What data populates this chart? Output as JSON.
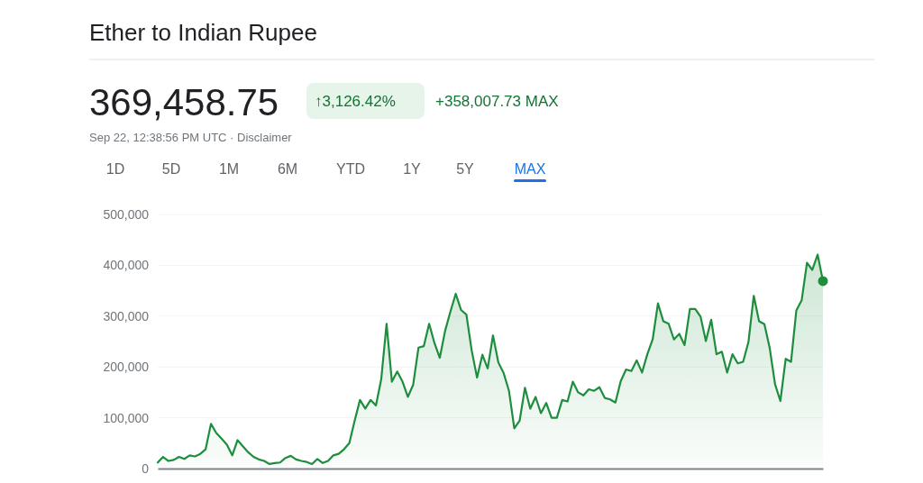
{
  "chart_data": {
    "type": "area",
    "title": "Ether to Indian Rupee",
    "annotations": [
      "369,458.75",
      "↑3,126.42%",
      "+358,007.73 MAX",
      "Sep 22, 12:38:56 PM UTC · Disclaimer",
      "1D",
      "5D",
      "1M",
      "6M",
      "YTD",
      "1Y",
      "5Y",
      "MAX"
    ],
    "categories": [
      null,
      null,
      null,
      null,
      null,
      null,
      null,
      null,
      null,
      null,
      null,
      null,
      null,
      null,
      null,
      null,
      null,
      null,
      null,
      null,
      null,
      null,
      null,
      null,
      null,
      null,
      null,
      null,
      null,
      null,
      null,
      null,
      null,
      null,
      null,
      null,
      null,
      null,
      null,
      null,
      null,
      null,
      null,
      null,
      null,
      null,
      null,
      null,
      null,
      null,
      null,
      null,
      null,
      null,
      null,
      null,
      null,
      null,
      null,
      null,
      null,
      null,
      null,
      null,
      null,
      null,
      null,
      null,
      null,
      null,
      null,
      null,
      null,
      null,
      null,
      null,
      null,
      null,
      null,
      null,
      null,
      null,
      null,
      null,
      null,
      null,
      null,
      null,
      null,
      null,
      null,
      null,
      null,
      null,
      null,
      null,
      null,
      null,
      null,
      null,
      null,
      null,
      null,
      null,
      null,
      null,
      null,
      null,
      null,
      null,
      null,
      null,
      null,
      null,
      null,
      null,
      null,
      null,
      null,
      null,
      null,
      null,
      null,
      null,
      null,
      null
    ],
    "series": [
      {
        "color": "#1e8e3e",
        "values": [
          12000,
          23000,
          15000,
          17000,
          23000,
          19000,
          26000,
          24000,
          29000,
          38000,
          88000,
          70000,
          59000,
          47000,
          26000,
          56000,
          44000,
          32000,
          23000,
          18000,
          15000,
          9000,
          11000,
          12000,
          21000,
          25000,
          18000,
          15000,
          13000,
          9000,
          19000,
          11000,
          15000,
          26000,
          29000,
          38000,
          50000,
          94000,
          135000,
          118000,
          135000,
          124000,
          176000,
          285000,
          171000,
          191000,
          171000,
          141000,
          165000,
          238000,
          241000,
          285000,
          247000,
          218000,
          271000,
          309000,
          344000,
          312000,
          303000,
          232000,
          179000,
          224000,
          197000,
          262000,
          209000,
          188000,
          153000,
          79000,
          94000,
          159000,
          118000,
          141000,
          109000,
          129000,
          100000,
          100000,
          135000,
          132000,
          171000,
          150000,
          144000,
          156000,
          153000,
          160000,
          139000,
          136000,
          130000,
          172000,
          195000,
          192000,
          213000,
          189000,
          225000,
          254000,
          325000,
          290000,
          285000,
          254000,
          265000,
          243000,
          314000,
          314000,
          299000,
          251000,
          293000,
          225000,
          230000,
          189000,
          225000,
          207000,
          210000,
          249000,
          340000,
          290000,
          284000,
          237000,
          166000,
          133000,
          216000,
          210000,
          311000,
          331000,
          405000,
          391000,
          421000,
          369000
        ]
      }
    ],
    "ylim": [
      0,
      500000
    ],
    "yticks": [
      {
        "value": 0,
        "label": "0"
      },
      {
        "value": 100000,
        "label": "100,000"
      },
      {
        "value": 200000,
        "label": "200,000"
      },
      {
        "value": 300000,
        "label": "300,000"
      },
      {
        "value": 400000,
        "label": "400,000"
      },
      {
        "value": 500000,
        "label": "500,000"
      }
    ],
    "grid": "y"
  }
}
